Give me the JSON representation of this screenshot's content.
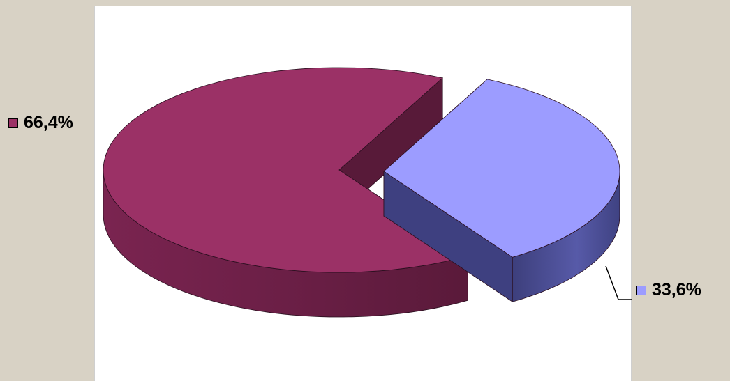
{
  "chart_data": {
    "type": "pie",
    "title": "",
    "slices": [
      {
        "value": 66.4,
        "label": "66,4%",
        "color": "#9b3166"
      },
      {
        "value": 33.6,
        "label": "33,6%",
        "color": "#9c9cff"
      }
    ],
    "three_d": true,
    "exploded": true,
    "legend": "none"
  }
}
